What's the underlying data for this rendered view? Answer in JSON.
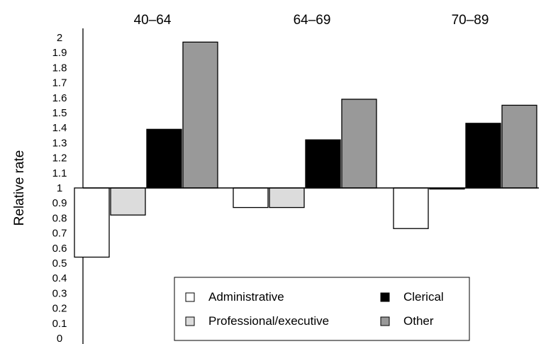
{
  "chart_data": {
    "type": "bar",
    "baseline": 1,
    "categories": [
      "40–64",
      "64–69",
      "70–89"
    ],
    "series": [
      {
        "name": "Administrative",
        "color": "#ffffff",
        "values": [
          0.54,
          0.87,
          0.73
        ]
      },
      {
        "name": "Professional/executive",
        "color": "#dcdcdc",
        "values": [
          0.82,
          0.87,
          1.0
        ]
      },
      {
        "name": "Clerical",
        "color": "#000000",
        "values": [
          1.39,
          1.32,
          1.43
        ]
      },
      {
        "name": "Other",
        "color": "#999999",
        "values": [
          1.97,
          1.59,
          1.55
        ]
      }
    ],
    "ylabel": "Relative rate",
    "ylim": [
      0,
      2
    ],
    "yticks": [
      "0",
      "0.1",
      "0.2",
      "0.3",
      "0.4",
      "0.5",
      "0.6",
      "0.7",
      "0.8",
      "0.9",
      "1",
      "1.1",
      "1.2",
      "1.3",
      "1.4",
      "1.5",
      "1.6",
      "1.7",
      "1.8",
      "1.9",
      "2"
    ],
    "legend": {
      "position": "bottom-center",
      "items": [
        "Administrative",
        "Clerical",
        "Professional/executive",
        "Other"
      ]
    },
    "grid": false
  }
}
